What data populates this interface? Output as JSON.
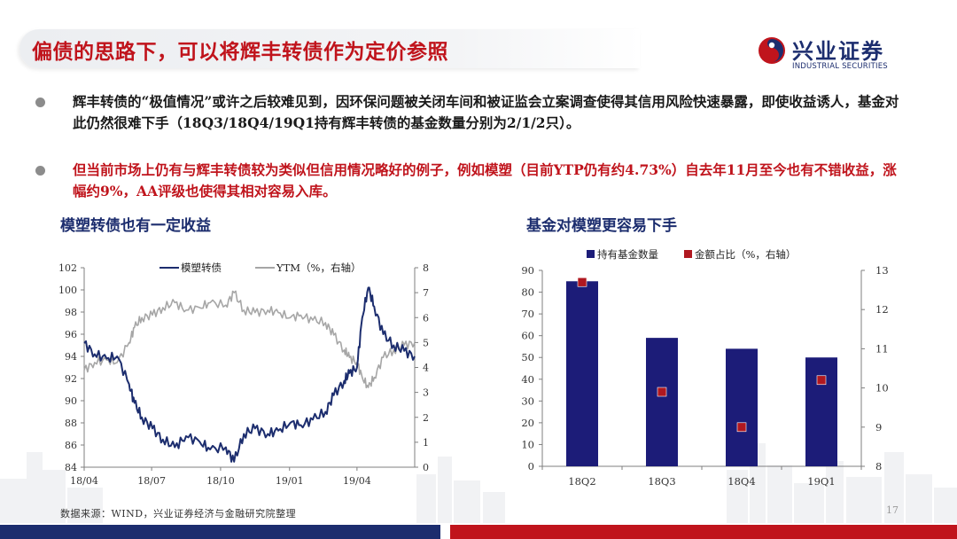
{
  "title": "偏债的思路下，可以将辉丰转债作为定价参照",
  "logo": {
    "cn": "兴业证券",
    "en": "INDUSTRIAL SECURITIES"
  },
  "bullets": [
    "辉丰转债的“极值情况”或许之后较难见到，因环保问题被关闭车间和被证监会立案调查使得其信用风险快速暴露，即使收益诱人，基金对此仍然很难下手（18Q3/18Q4/19Q1持有辉丰转债的基金数量分别为2/1/2只）。",
    "但当前市场上仍有与辉丰转债较为类似但信用情况略好的例子，例如模塑（目前YTP仍有约4.73%）自去年11月至今也有不错收益，涨幅约9%，AA评级也使得其相对容易入库。"
  ],
  "colors": {
    "title_red": "#c0141c",
    "navy": "#1c2d6e",
    "gray_line": "#a6a6a6",
    "marker_red": "#b01820"
  },
  "chart_data": [
    {
      "type": "line",
      "title": "模塑转债也有一定收益",
      "legend_placement": "top",
      "series": [
        {
          "name": "模塑转债",
          "axis": "left",
          "color": "#1c2d6e",
          "x": [
            "2018-04-02",
            "2018-04-16",
            "2018-05-02",
            "2018-05-16",
            "2018-06-01",
            "2018-06-08",
            "2018-06-18",
            "2018-07-02",
            "2018-07-16",
            "2018-08-01",
            "2018-08-16",
            "2018-09-03",
            "2018-09-17",
            "2018-10-08",
            "2018-10-19",
            "2018-11-01",
            "2018-11-16",
            "2018-12-03",
            "2018-12-17",
            "2019-01-02",
            "2019-01-16",
            "2019-02-01",
            "2019-02-18",
            "2019-03-01",
            "2019-03-15",
            "2019-03-22",
            "2019-04-01",
            "2019-04-08",
            "2019-04-16",
            "2019-04-24",
            "2019-05-06",
            "2019-05-20",
            "2019-06-03",
            "2019-06-17"
          ],
          "values": [
            95.2,
            94.2,
            93.8,
            94.0,
            91.5,
            89.8,
            88.5,
            87.5,
            86.5,
            85.8,
            86.8,
            86.3,
            85.6,
            85.8,
            84.5,
            87.0,
            87.5,
            87.0,
            87.3,
            88.0,
            87.8,
            88.3,
            89.0,
            90.5,
            91.8,
            92.5,
            93.0,
            97.5,
            100.2,
            98.5,
            96.0,
            95.0,
            94.5,
            94.0
          ]
        },
        {
          "name": "YTM（%，右轴）",
          "axis": "right",
          "color": "#a6a6a6",
          "x": [
            "2018-04-02",
            "2018-04-16",
            "2018-05-02",
            "2018-05-16",
            "2018-06-01",
            "2018-06-08",
            "2018-06-18",
            "2018-07-02",
            "2018-07-16",
            "2018-08-01",
            "2018-08-16",
            "2018-09-03",
            "2018-09-17",
            "2018-10-08",
            "2018-10-19",
            "2018-11-01",
            "2018-11-16",
            "2018-12-03",
            "2018-12-17",
            "2019-01-02",
            "2019-01-16",
            "2019-02-01",
            "2019-02-18",
            "2019-03-01",
            "2019-03-15",
            "2019-03-22",
            "2019-04-01",
            "2019-04-08",
            "2019-04-16",
            "2019-04-24",
            "2019-05-06",
            "2019-05-20",
            "2019-06-03",
            "2019-06-17"
          ],
          "values": [
            3.9,
            4.2,
            4.3,
            4.2,
            5.0,
            5.6,
            6.0,
            6.1,
            6.4,
            6.6,
            6.3,
            6.4,
            6.6,
            6.5,
            7.0,
            6.3,
            6.2,
            6.3,
            6.2,
            6.0,
            6.1,
            5.9,
            5.8,
            5.3,
            4.7,
            4.4,
            4.2,
            3.6,
            3.2,
            3.6,
            4.4,
            4.7,
            4.9,
            5.0
          ]
        }
      ],
      "x_ticks": [
        "18/04",
        "18/07",
        "18/10",
        "19/01",
        "19/04"
      ],
      "x_range": [
        "2018-04-02",
        "2019-06-17"
      ],
      "y_left": {
        "min": 84,
        "max": 102,
        "ticks": [
          84,
          86,
          88,
          90,
          92,
          94,
          96,
          98,
          100,
          102
        ]
      },
      "y_right": {
        "min": 0,
        "max": 8,
        "ticks": [
          0,
          1,
          2,
          3,
          4,
          5,
          6,
          7,
          8
        ]
      },
      "grid": false
    },
    {
      "type": "bar",
      "title": "基金对模塑更容易下手",
      "legend_placement": "top",
      "categories": [
        "18Q2",
        "18Q3",
        "18Q4",
        "19Q1"
      ],
      "series": [
        {
          "name": "持有基金数量",
          "axis": "left",
          "kind": "bar",
          "color": "#1c1c78",
          "values": [
            85,
            59,
            54,
            50
          ]
        },
        {
          "name": "金额占比（%，右轴）",
          "axis": "right",
          "kind": "marker",
          "color": "#b01820",
          "values": [
            12.7,
            9.9,
            9.0,
            10.2
          ]
        }
      ],
      "y_left": {
        "min": 0,
        "max": 90,
        "ticks": [
          0,
          10,
          20,
          30,
          40,
          50,
          60,
          70,
          80,
          90
        ]
      },
      "y_right": {
        "min": 8,
        "max": 13,
        "ticks": [
          8,
          9,
          10,
          11,
          12,
          13
        ]
      },
      "grid": false
    }
  ],
  "source": "数据来源：WIND，兴业证券经济与金融研究院整理",
  "page_number": "17"
}
